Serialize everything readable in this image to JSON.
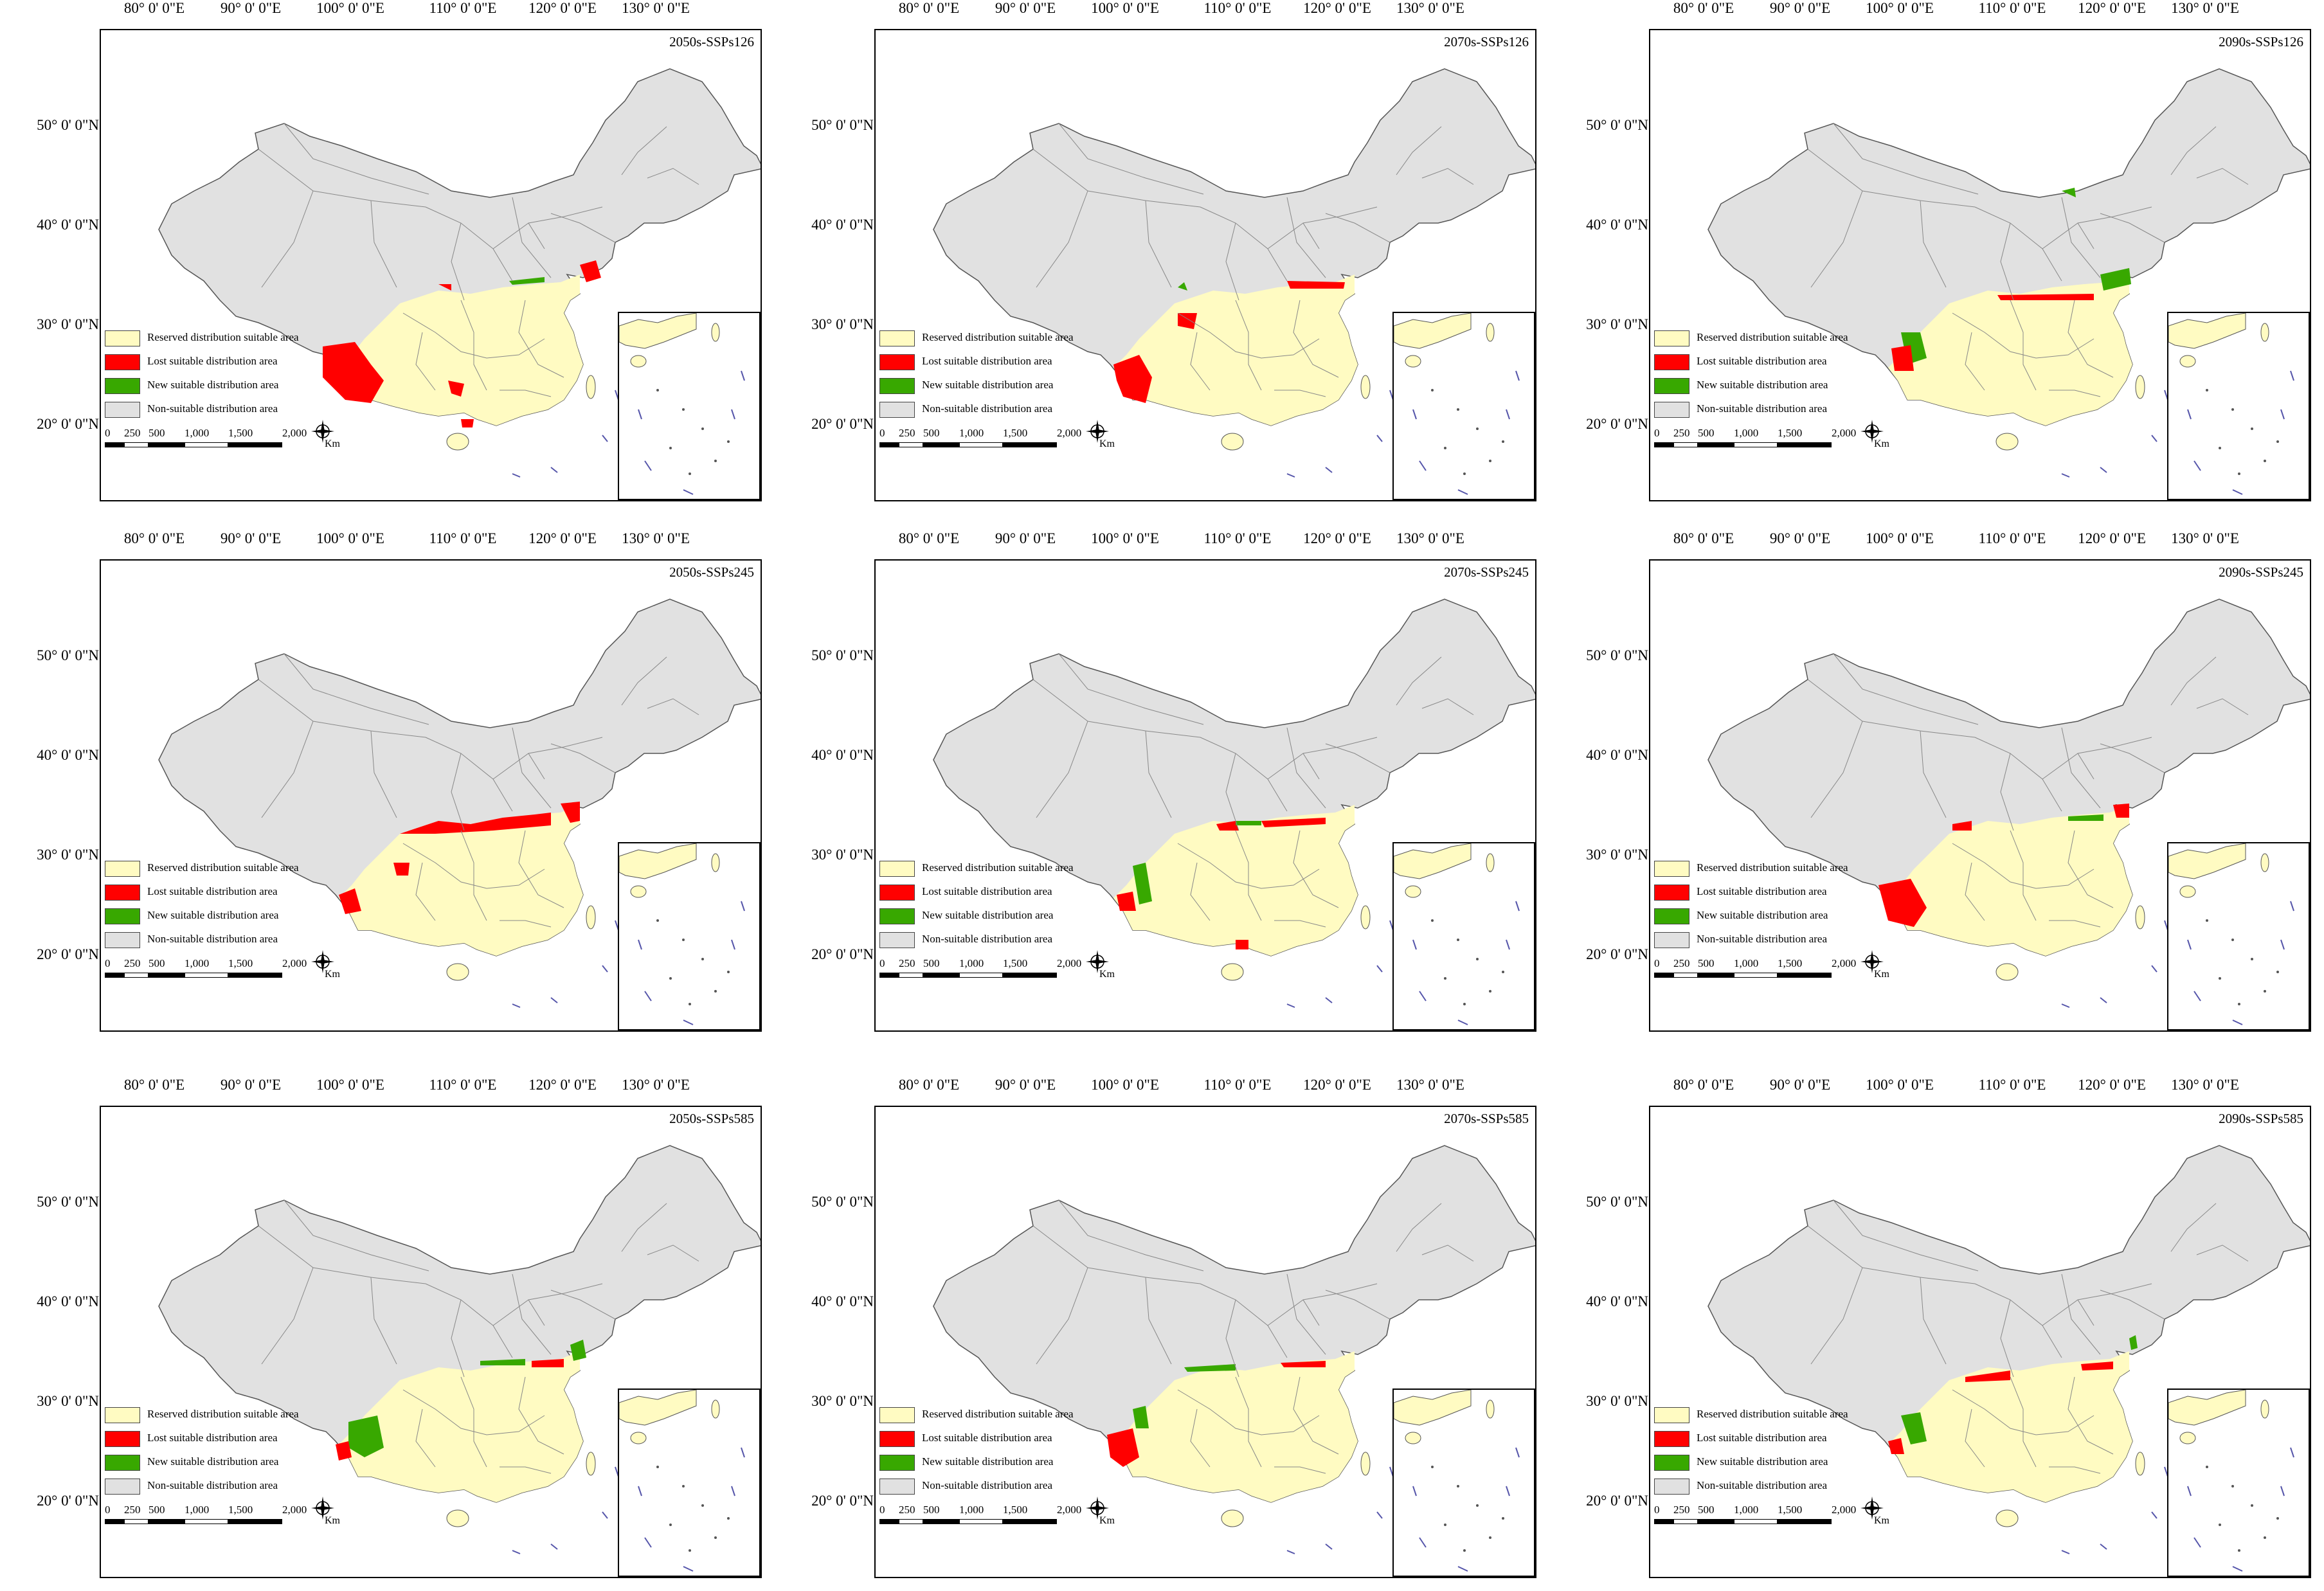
{
  "lon_labels": [
    "80° 0' 0\"E",
    "90° 0' 0\"E",
    "100° 0' 0\"E",
    "110° 0' 0\"E",
    "120° 0' 0\"E",
    "130° 0' 0\"E"
  ],
  "lat_labels": [
    "50° 0' 0\"N",
    "40° 0' 0\"N",
    "30° 0' 0\"N",
    "20° 0' 0\"N"
  ],
  "legend": [
    {
      "label": "Reserved distribution suitable area",
      "color": "#FFFBC2"
    },
    {
      "label": "Lost suitable distribution area",
      "color": "#FF0000"
    },
    {
      "label": "New suitable distribution area",
      "color": "#38A800"
    },
    {
      "label": "Non-suitable distribution area",
      "color": "#E1E1E1"
    }
  ],
  "scale_bar": {
    "ticks": [
      "0",
      "250",
      "500",
      "1,000",
      "1,500",
      "2,000"
    ],
    "unit": "Km"
  },
  "panels": [
    {
      "title": "2050s-SSPs126"
    },
    {
      "title": "2070s-SSPs126"
    },
    {
      "title": "2090s-SSPs126"
    },
    {
      "title": "2050s-SSPs245"
    },
    {
      "title": "2070s-SSPs245"
    },
    {
      "title": "2090s-SSPs245"
    },
    {
      "title": "2050s-SSPs585"
    },
    {
      "title": "2070s-SSPs585"
    },
    {
      "title": "2090s-SSPs585"
    }
  ],
  "icons": {
    "north_arrow": "compass-rose-icon"
  }
}
